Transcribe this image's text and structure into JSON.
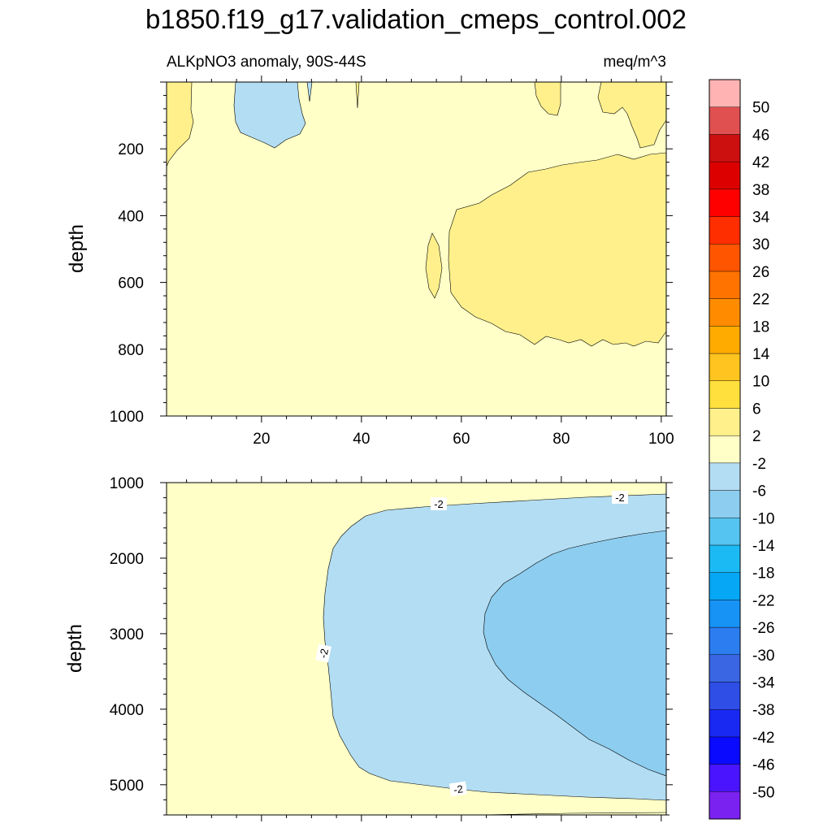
{
  "title": "b1850.f19_g17.validation_cmeps_control.002",
  "chart_data": {
    "type": "contour",
    "variable_label": "ALKpNO3 anomaly, 90S-44S",
    "units": "meq/m^3",
    "colorbar": {
      "colors": [
        "#7a22f0",
        "#4a14ff",
        "#0a0aff",
        "#1a29f2",
        "#2e4ee6",
        "#3a66e3",
        "#2c7df0",
        "#1793f5",
        "#06a7f5",
        "#1cbaf5",
        "#55c4f0",
        "#8dcdef",
        "#b3ddf2",
        "#ffffc7",
        "#fff08b",
        "#ffe03d",
        "#ffc41f",
        "#ffab00",
        "#ff8c00",
        "#ff7300",
        "#ff5500",
        "#ff2e00",
        "#ff0000",
        "#dd0000",
        "#cc1010",
        "#e05050",
        "#ffb3b3"
      ],
      "labels": [
        "-50",
        "-46",
        "-42",
        "-38",
        "-34",
        "-30",
        "-26",
        "-22",
        "-18",
        "-14",
        "-10",
        "-6",
        "-2",
        "2",
        "6",
        "10",
        "14",
        "18",
        "22",
        "26",
        "30",
        "34",
        "38",
        "42",
        "46",
        "50"
      ]
    },
    "panels": [
      {
        "name": "upper",
        "xlim": [
          1,
          101
        ],
        "ylim": [
          0,
          1000
        ],
        "ylabel": "depth",
        "xticks": [
          "20",
          "40",
          "60",
          "80",
          "100"
        ],
        "yticks": [
          "200",
          "400",
          "600",
          "800",
          "1000"
        ],
        "contour_labels": []
      },
      {
        "name": "lower",
        "xlim": [
          1,
          101
        ],
        "ylim": [
          1000,
          5400
        ],
        "ylabel": "depth",
        "xticks": [],
        "yticks": [
          "1000",
          "2000",
          "3000",
          "4000",
          "5000"
        ],
        "contour_labels": [
          "-2",
          "-2",
          "-2",
          "-2"
        ]
      }
    ]
  }
}
